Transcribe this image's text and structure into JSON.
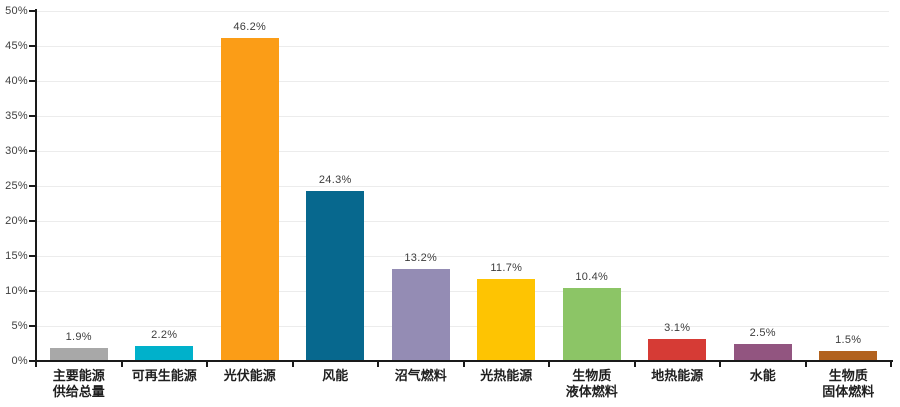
{
  "chart_data": {
    "type": "bar",
    "title": "",
    "xlabel": "",
    "ylabel": "",
    "categories": [
      "主要能源供给总量",
      "可再生能源",
      "光伏能源",
      "风能",
      "沼气燃料",
      "光热能源",
      "生物质液体燃料",
      "地热能源",
      "水能",
      "生物质固体燃料"
    ],
    "category_lines": [
      [
        "主要能源",
        "供给总量"
      ],
      [
        "可再生能源"
      ],
      [
        "光伏能源"
      ],
      [
        "风能"
      ],
      [
        "沼气燃料"
      ],
      [
        "光热能源"
      ],
      [
        "生物质",
        "液体燃料"
      ],
      [
        "地热能源"
      ],
      [
        "水能"
      ],
      [
        "生物质",
        "固体燃料"
      ]
    ],
    "values": [
      1.9,
      2.2,
      46.2,
      24.3,
      13.2,
      11.7,
      10.4,
      3.1,
      2.5,
      1.5
    ],
    "value_labels": [
      "1.9%",
      "2.2%",
      "46.2%",
      "24.3%",
      "13.2%",
      "11.7%",
      "10.4%",
      "3.1%",
      "2.5%",
      "1.5%"
    ],
    "bar_colors": [
      "#a8a8a8",
      "#00b1cb",
      "#fb9d17",
      "#07688e",
      "#948cb4",
      "#fec402",
      "#8cc566",
      "#d63b35",
      "#925580",
      "#b2621e"
    ],
    "ylim": [
      0,
      50
    ],
    "y_tick_step": 5,
    "y_tick_labels": [
      "0%",
      "5%",
      "10%",
      "15%",
      "20%",
      "25%",
      "30%",
      "35%",
      "40%",
      "45%",
      "50%"
    ],
    "grid": true,
    "legend": false
  },
  "style": {
    "background": "#ffffff",
    "axis_color": "#1a1a1a",
    "grid_color": "#ececec",
    "tick_label_color": "#3f3f3f",
    "value_label_color": "#3d3d3d",
    "category_label_color": "#1f1f1f"
  }
}
